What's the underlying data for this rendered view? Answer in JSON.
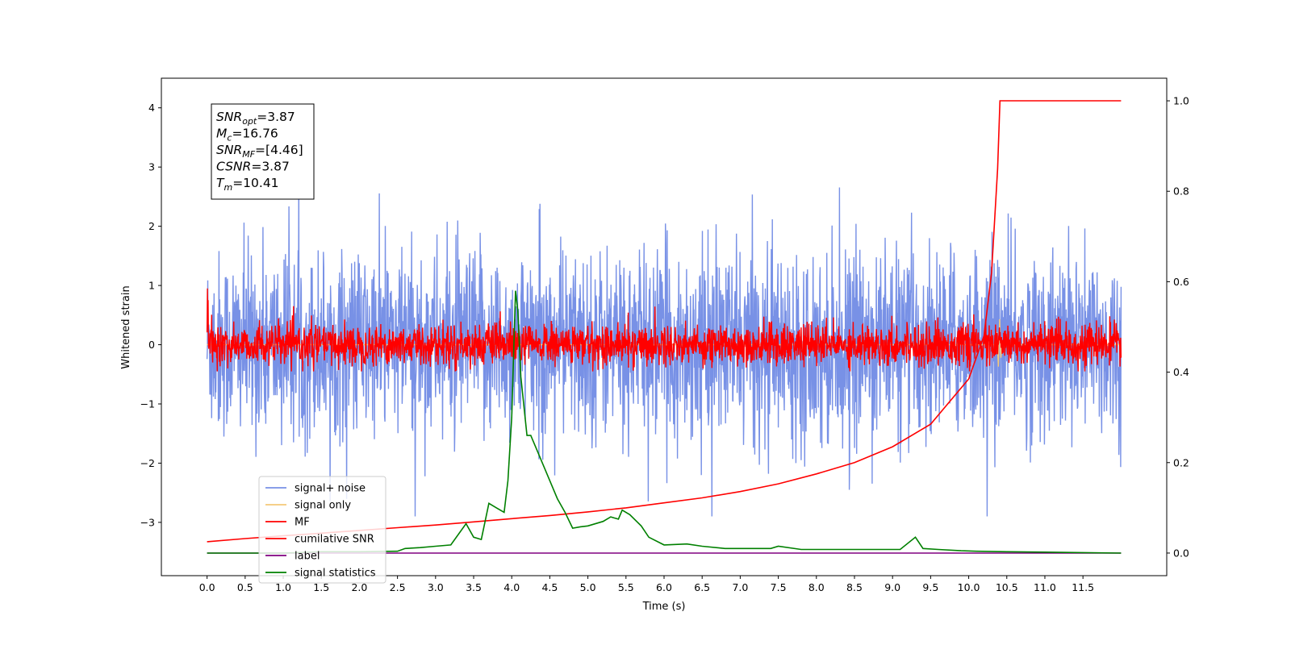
{
  "chart_data": {
    "type": "line",
    "xlabel": "Time (s)",
    "ylabel_left": "Whitened strain",
    "ylabel_right": "",
    "xlim": [
      -0.6,
      12.6
    ],
    "ylim_left": [
      -3.9,
      4.5
    ],
    "ylim_right": [
      -0.05,
      1.05
    ],
    "x_ticks": [
      "0.0",
      "0.5",
      "1.0",
      "1.5",
      "2.0",
      "2.5",
      "3.0",
      "3.5",
      "4.0",
      "4.5",
      "5.0",
      "5.5",
      "6.0",
      "6.5",
      "7.0",
      "7.5",
      "8.0",
      "8.5",
      "9.0",
      "9.5",
      "10.0",
      "10.5",
      "11.0",
      "11.5"
    ],
    "y_ticks_left": [
      "−3",
      "−2",
      "−1",
      "0",
      "1",
      "2",
      "3",
      "4"
    ],
    "y_ticks_right": [
      "0.0",
      "0.2",
      "0.4",
      "0.6",
      "0.8",
      "1.0"
    ],
    "grid": false,
    "legend_position": "lower-left",
    "duration": 12.0,
    "merger_time": 10.41,
    "series": [
      {
        "name": "signal+ noise",
        "color": "#7891e6",
        "axis": "left",
        "noise_std": 1.0,
        "range": [
          -2.9,
          4.17
        ]
      },
      {
        "name": "signal only",
        "color": "#f5c878",
        "axis": "left",
        "peak_time": 10.41,
        "amplitude": 0.6
      },
      {
        "name": "MF",
        "color": "#ff0000",
        "axis": "left",
        "noise_std": 0.2,
        "range": [
          -0.45,
          0.95
        ]
      },
      {
        "name": "cumilative SNR",
        "color": "#ff0000",
        "axis": "right",
        "x": [
          0.0,
          0.5,
          1.0,
          1.5,
          2.0,
          2.5,
          3.0,
          3.5,
          4.0,
          4.5,
          5.0,
          5.5,
          6.0,
          6.5,
          7.0,
          7.5,
          8.0,
          8.5,
          9.0,
          9.5,
          10.0,
          10.2,
          10.3,
          10.38,
          10.41,
          12.0
        ],
        "y": [
          0.025,
          0.032,
          0.038,
          0.044,
          0.05,
          0.056,
          0.062,
          0.069,
          0.076,
          0.083,
          0.091,
          0.1,
          0.111,
          0.122,
          0.136,
          0.153,
          0.175,
          0.2,
          0.235,
          0.285,
          0.385,
          0.48,
          0.62,
          0.85,
          1.0,
          1.0
        ]
      },
      {
        "name": "label",
        "color": "#800080",
        "axis": "right",
        "x": [
          0.0,
          12.0
        ],
        "y": [
          0.0,
          0.0
        ]
      },
      {
        "name": "signal statistics",
        "color": "#008000",
        "axis": "right",
        "x": [
          0.0,
          0.5,
          1.0,
          1.5,
          2.0,
          2.5,
          2.6,
          2.8,
          3.0,
          3.2,
          3.4,
          3.5,
          3.6,
          3.7,
          3.8,
          3.9,
          3.95,
          4.0,
          4.05,
          4.08,
          4.12,
          4.2,
          4.25,
          4.35,
          4.4,
          4.5,
          4.6,
          4.7,
          4.8,
          4.9,
          5.0,
          5.2,
          5.3,
          5.4,
          5.45,
          5.55,
          5.7,
          5.8,
          6.0,
          6.3,
          6.5,
          6.8,
          7.0,
          7.4,
          7.5,
          7.8,
          8.0,
          8.4,
          8.5,
          8.9,
          9.1,
          9.3,
          9.4,
          9.6,
          9.9,
          10.1,
          10.5,
          11.0,
          11.5,
          12.0
        ],
        "y": [
          0.0,
          0.0,
          0.0,
          0.003,
          0.003,
          0.004,
          0.01,
          0.012,
          0.015,
          0.018,
          0.065,
          0.035,
          0.03,
          0.11,
          0.1,
          0.09,
          0.16,
          0.3,
          0.58,
          0.535,
          0.39,
          0.26,
          0.26,
          0.22,
          0.2,
          0.16,
          0.12,
          0.09,
          0.055,
          0.058,
          0.06,
          0.07,
          0.08,
          0.075,
          0.095,
          0.085,
          0.06,
          0.035,
          0.018,
          0.02,
          0.015,
          0.01,
          0.01,
          0.01,
          0.015,
          0.008,
          0.008,
          0.008,
          0.008,
          0.008,
          0.008,
          0.035,
          0.01,
          0.008,
          0.005,
          0.004,
          0.003,
          0.002,
          0.001,
          0.0
        ]
      }
    ],
    "annotation": {
      "lines": [
        {
          "sym": "SNR",
          "sub": "opt",
          "text": "=3.87"
        },
        {
          "sym": "M",
          "sub": "c",
          "text": "=16.76"
        },
        {
          "sym": "SNR",
          "sub": "MF",
          "text": "=[4.46]"
        },
        {
          "sym": "CSNR",
          "sub": "",
          "text": "=3.87"
        },
        {
          "sym": "T",
          "sub": "m",
          "text": "=10.41"
        }
      ]
    }
  }
}
